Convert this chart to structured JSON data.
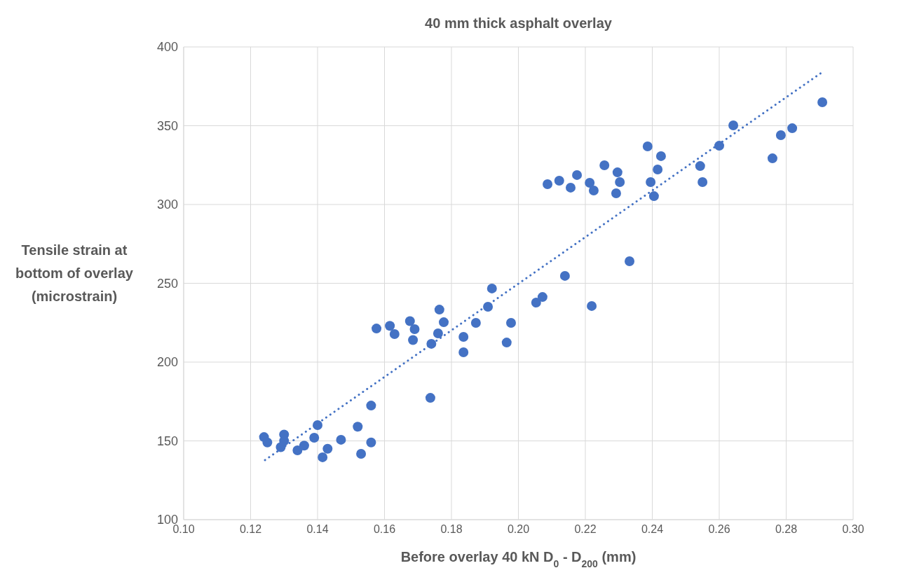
{
  "chart_data": {
    "type": "scatter",
    "title": "40 mm thick asphalt overlay",
    "xlabel": "Before overlay 40 kN D$_{0}$ - D$_{200}$ (mm)",
    "ylabel": "Tensile strain at bottom of overlay (microstrain)",
    "xlim": [
      0.1,
      0.3
    ],
    "xticks": [
      {
        "value": 0.1,
        "label": "0.10"
      },
      {
        "value": 0.12,
        "label": "0.12"
      },
      {
        "value": 0.14,
        "label": "0.14"
      },
      {
        "value": 0.16,
        "label": "0.16"
      },
      {
        "value": 0.18,
        "label": "0.18"
      },
      {
        "value": 0.2,
        "label": "0.20"
      },
      {
        "value": 0.22,
        "label": "0.22"
      },
      {
        "value": 0.24,
        "label": "0.24"
      },
      {
        "value": 0.26,
        "label": "0.26"
      },
      {
        "value": 0.28,
        "label": "0.28"
      },
      {
        "value": 0.3,
        "label": "0.30"
      }
    ],
    "ylim": [
      100,
      400
    ],
    "yticks": [
      100,
      150,
      200,
      250,
      300,
      350,
      400
    ],
    "grid": true,
    "marker": "circle",
    "series": [
      {
        "type": "scatter",
        "color": "#4472c4",
        "x": [
          0.124,
          0.125,
          0.129,
          0.13,
          0.13,
          0.134,
          0.136,
          0.139,
          0.14,
          0.1415,
          0.143,
          0.147,
          0.152,
          0.153,
          0.156,
          0.156,
          0.1576,
          0.1616,
          0.163,
          0.1676,
          0.1685,
          0.169,
          0.1737,
          0.174,
          0.176,
          0.1764,
          0.1777,
          0.1836,
          0.1836,
          0.1873,
          0.1909,
          0.1921,
          0.1965,
          0.1978,
          0.2053,
          0.2072,
          0.2087,
          0.2122,
          0.2139,
          0.2156,
          0.2175,
          0.2213,
          0.2219,
          0.2225,
          0.2257,
          0.2292,
          0.2296,
          0.2303,
          0.2332,
          0.2386,
          0.2395,
          0.2405,
          0.2416,
          0.2426,
          0.2543,
          0.255,
          0.26,
          0.2642,
          0.2759,
          0.2784,
          0.2818,
          0.2908
        ],
        "values": [
          152.4,
          149,
          146,
          154,
          150,
          144,
          147,
          152,
          160,
          139.6,
          145,
          150.7,
          159,
          141.8,
          149,
          172.4,
          221.3,
          223,
          217.8,
          226,
          214,
          220.9,
          177.3,
          211.6,
          218.2,
          233.3,
          225.3,
          216,
          206.2,
          224.9,
          235.1,
          246.7,
          212.4,
          224.9,
          237.8,
          241.3,
          312.9,
          315.1,
          254.7,
          310.7,
          318.7,
          313.8,
          235.6,
          308.9,
          324.9,
          307.1,
          320.4,
          314.2,
          264,
          336.9,
          314.2,
          305.3,
          322.2,
          330.7,
          324.4,
          314.2,
          337.3,
          350.2,
          329.3,
          344,
          348.4,
          364.9
        ]
      },
      {
        "type": "line",
        "color": "#4472c4",
        "line_style": "dotted",
        "marker": "none",
        "x": [
          0.1243,
          0.2908
        ],
        "values": [
          137.8,
          384
        ]
      }
    ]
  }
}
